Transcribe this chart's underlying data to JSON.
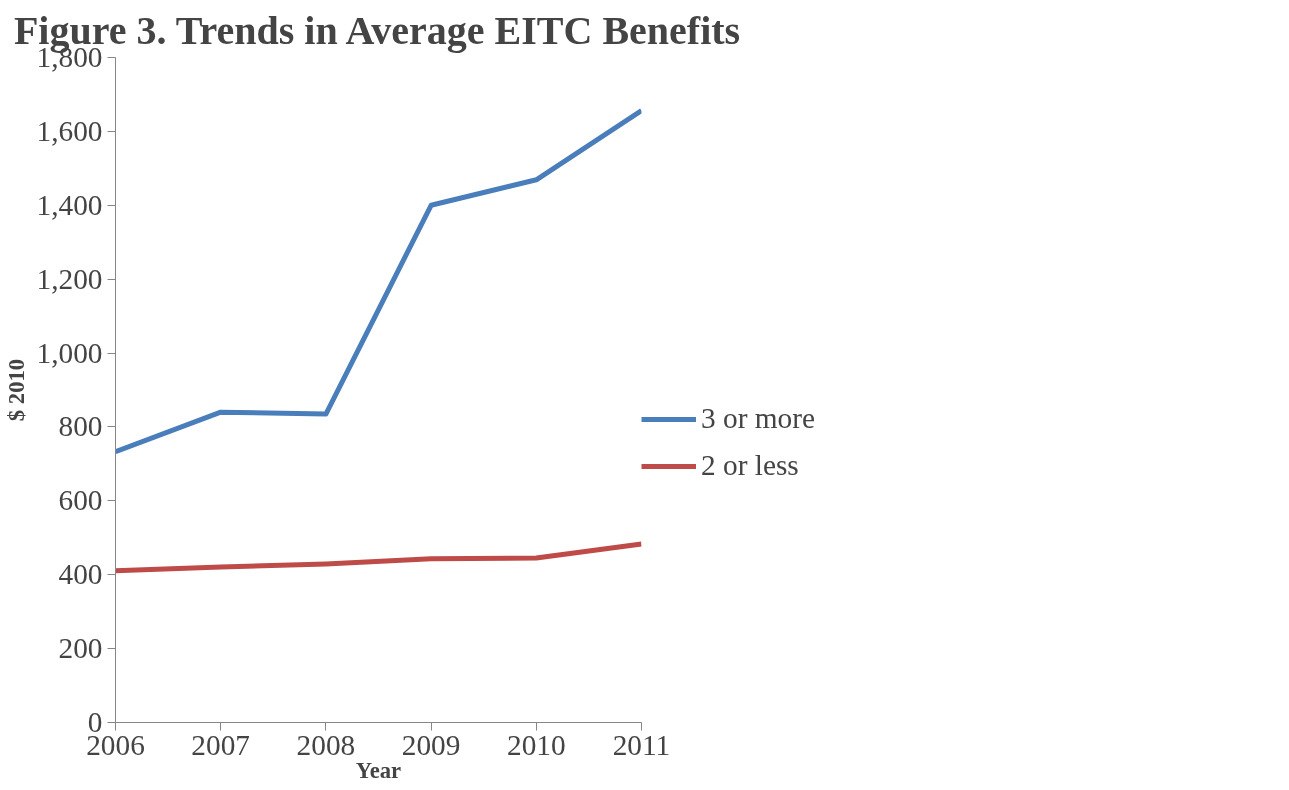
{
  "chart_data": {
    "type": "line",
    "title": "Figure 3. Trends in Average EITC Benefits",
    "xlabel": "Year",
    "ylabel": "$ 2010",
    "x": [
      2006,
      2007,
      2008,
      2009,
      2010,
      2011
    ],
    "series": [
      {
        "name": "3 or more",
        "color": "#4a7ebb",
        "values": [
          733,
          840,
          835,
          1400,
          1469,
          1656
        ]
      },
      {
        "name": "2 or less",
        "color": "#be4b48",
        "values": [
          411,
          421,
          429,
          443,
          445,
          483
        ]
      }
    ],
    "xlim": [
      2006,
      2011
    ],
    "xticks": [
      2006,
      2007,
      2008,
      2009,
      2010,
      2011
    ],
    "ylim": [
      0,
      1800
    ],
    "yticks": [
      {
        "value": 0,
        "label": "0"
      },
      {
        "value": 200,
        "label": "200"
      },
      {
        "value": 400,
        "label": "400"
      },
      {
        "value": 600,
        "label": "600"
      },
      {
        "value": 800,
        "label": "800"
      },
      {
        "value": 1000,
        "label": "1,000"
      },
      {
        "value": 1200,
        "label": "1,200"
      },
      {
        "value": 1400,
        "label": "1,400"
      },
      {
        "value": 1600,
        "label": "1,600"
      },
      {
        "value": 1800,
        "label": "1,800"
      }
    ],
    "grid": false,
    "legend": "right",
    "marker": "none",
    "line_style": "solid"
  }
}
